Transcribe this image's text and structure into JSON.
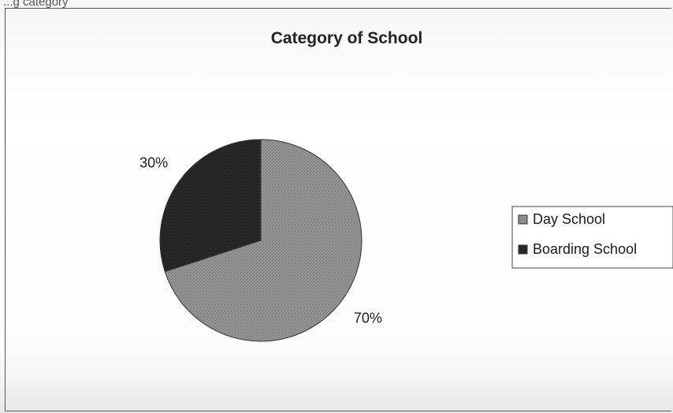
{
  "page": {
    "caption": "...g category"
  },
  "chart_data": {
    "type": "pie",
    "title": "Category of School",
    "categories": [
      "Day School",
      "Boarding School"
    ],
    "values": [
      70,
      30
    ],
    "labels": [
      "70%",
      "30%"
    ],
    "colors": [
      "#8f8f8f",
      "#2b2b2b"
    ],
    "legend": "right"
  }
}
